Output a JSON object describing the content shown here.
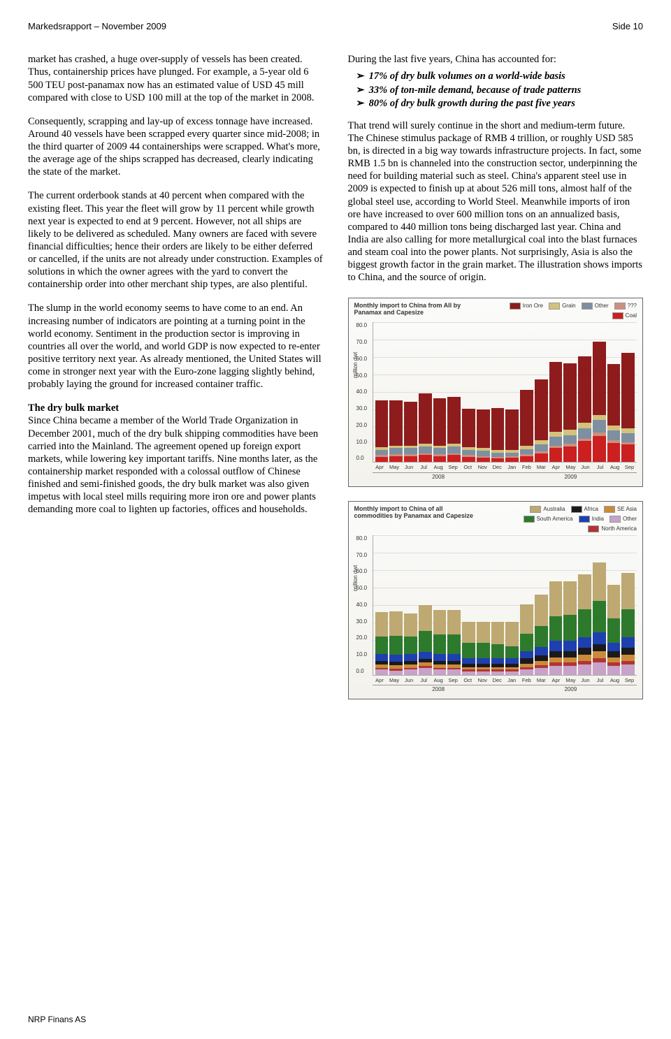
{
  "header": {
    "left": "Markedsrapport – November 2009",
    "right": "Side 10"
  },
  "footer": "NRP Finans AS",
  "left_col": {
    "p1": "market has crashed, a huge over-supply of vessels has been created. Thus, containership prices have plunged. For example, a 5-year old 6 500 TEU post-panamax now has an estimated value of USD 45 mill compared with close to USD 100 mill at the top of the market in 2008.",
    "p2": "Consequently, scrapping and lay-up of excess tonnage have increased. Around 40 vessels have been scrapped every quarter since mid-2008; in the third quarter of 2009 44 containerships were scrapped. What's more, the average age of the ships scrapped has decreased, clearly indicating the state of the market.",
    "p3": "The current orderbook stands at 40 percent when compared with the existing fleet. This year the fleet will grow by 11 percent while growth next year is expected to end at 9 percent. However, not all ships are likely to be delivered as scheduled. Many owners are faced with severe financial difficulties; hence their orders are likely to be either deferred or cancelled, if the units are not already under construction. Examples of solutions in which the owner agrees with the yard to convert the containership order into other merchant ship types, are also plentiful.",
    "p4": "The slump in the world economy seems to have come to an end. An increasing number of indicators are pointing at a turning point in the world economy. Sentiment in the production sector is improving in countries all over the world, and world GDP is now expected to re-enter positive territory next year. As already mentioned, the United States will come in stronger next year with the Euro-zone lagging slightly behind, probably laying the ground for increased container traffic.",
    "sec_head": "The dry bulk market",
    "p5": "Since China became a member of the World Trade Organization in December 2001, much of the dry bulk shipping commodities have been carried into the Mainland. The agreement opened up foreign export markets, while lowering key important tariffs. Nine months later, as the containership market responded with a colossal outflow of Chinese finished and semi-finished goods, the dry bulk market was also given impetus with local steel mills requiring more iron ore and power plants demanding more coal to lighten up factories, offices and households."
  },
  "right_col": {
    "p1": "During the last five years, China has accounted for:",
    "bullets": [
      "17% of dry bulk volumes on a world-wide basis",
      "33% of ton-mile demand, because of trade patterns",
      "80% of dry bulk growth during the past five years"
    ],
    "p2": "That trend will surely continue in the short and medium-term future. The Chinese stimulus package of RMB 4 trillion, or roughly USD 585 bn, is directed in a big way towards infrastructure projects. In fact, some RMB 1.5 bn is channeled into the construction sector, underpinning the need for building material such as steel. China's apparent steel use in 2009 is expected to finish up at about 526 mill tons, almost half of the global steel use, according to World Steel. Meanwhile imports of iron ore have increased to over 600 million tons on an annualized basis, compared to 440 million tons being discharged last year. China and India are also calling for more metallurgical coal into the blast furnaces and steam coal into the power plants. Not surprisingly, Asia is also the biggest growth factor in the grain market. The illustration shows imports to China, and the source of origin."
  },
  "chart1": {
    "title": "Monthly import to China from All by Panamax and Capesize",
    "ylabel": "million dwt",
    "ymax": 80,
    "ytick_step": 10,
    "legend": [
      {
        "label": "Iron Ore",
        "color": "#8e1c1c"
      },
      {
        "label": "Grain",
        "color": "#d3c27a"
      },
      {
        "label": "Other",
        "color": "#7d8fa0"
      },
      {
        "label": "???",
        "color": "#cc8f7f"
      },
      {
        "label": "Coal",
        "color": "#cb2020"
      }
    ],
    "months": [
      "Apr",
      "May",
      "Jun",
      "Jul",
      "Aug",
      "Sep",
      "Oct",
      "Nov",
      "Dec",
      "Jan",
      "Feb",
      "Mar",
      "Apr",
      "May",
      "Jun",
      "Jul",
      "Aug",
      "Sep"
    ],
    "year_segments": [
      {
        "label": "2008",
        "span": 9
      },
      {
        "label": "2009",
        "span": 9
      }
    ],
    "series_order": [
      "iron",
      "grain",
      "other",
      "unk",
      "coal"
    ],
    "colors": {
      "iron": "#8e1c1c",
      "grain": "#d3c27a",
      "other": "#7d8fa0",
      "unk": "#cc8f7f",
      "coal": "#cb2020"
    },
    "data": [
      {
        "iron": 27,
        "grain": 1.5,
        "other": 3,
        "unk": 1,
        "coal": 3
      },
      {
        "iron": 26,
        "grain": 1.5,
        "other": 3.5,
        "unk": 1,
        "coal": 3.5
      },
      {
        "iron": 25,
        "grain": 1.5,
        "other": 3.5,
        "unk": 1,
        "coal": 3.5
      },
      {
        "iron": 29,
        "grain": 1.5,
        "other": 4,
        "unk": 1,
        "coal": 4
      },
      {
        "iron": 27,
        "grain": 1.5,
        "other": 3.5,
        "unk": 1,
        "coal": 3.5
      },
      {
        "iron": 27,
        "grain": 1.5,
        "other": 4,
        "unk": 1,
        "coal": 4
      },
      {
        "iron": 22,
        "grain": 1.5,
        "other": 3,
        "unk": 1,
        "coal": 3
      },
      {
        "iron": 22,
        "grain": 1.5,
        "other": 3,
        "unk": 1,
        "coal": 2.5
      },
      {
        "iron": 24,
        "grain": 1.5,
        "other": 2.5,
        "unk": 1,
        "coal": 2
      },
      {
        "iron": 23,
        "grain": 1.5,
        "other": 2,
        "unk": 1,
        "coal": 2.5
      },
      {
        "iron": 32,
        "grain": 2,
        "other": 3,
        "unk": 1,
        "coal": 3.5
      },
      {
        "iron": 35,
        "grain": 2.5,
        "other": 4,
        "unk": 1,
        "coal": 5
      },
      {
        "iron": 40,
        "grain": 3,
        "other": 5,
        "unk": 1.5,
        "coal": 8
      },
      {
        "iron": 38,
        "grain": 3,
        "other": 5,
        "unk": 1.5,
        "coal": 9
      },
      {
        "iron": 38,
        "grain": 3,
        "other": 6,
        "unk": 1.5,
        "coal": 12
      },
      {
        "iron": 42,
        "grain": 3,
        "other": 7,
        "unk": 2,
        "coal": 15
      },
      {
        "iron": 35,
        "grain": 3,
        "other": 5.5,
        "unk": 1.5,
        "coal": 11
      },
      {
        "iron": 43,
        "grain": 3,
        "other": 5,
        "unk": 1.5,
        "coal": 10
      }
    ]
  },
  "chart2": {
    "title": "Monthly import to China of all commodities by Panamax and Capesize",
    "ylabel": "million dwt",
    "ymax": 80,
    "ytick_step": 10,
    "legend": [
      {
        "label": "Australia",
        "color": "#bda971"
      },
      {
        "label": "Africa",
        "color": "#1a1a1a"
      },
      {
        "label": "SE Asia",
        "color": "#c98b3a"
      },
      {
        "label": "South America",
        "color": "#2d7a2d"
      },
      {
        "label": "India",
        "color": "#1e3fb0"
      },
      {
        "label": "Other",
        "color": "#c7a2c9"
      },
      {
        "label": "North America",
        "color": "#b33434"
      }
    ],
    "months": [
      "Apr",
      "May",
      "Jun",
      "Jul",
      "Aug",
      "Sep",
      "Oct",
      "Nov",
      "Dec",
      "Jan",
      "Feb",
      "Mar",
      "Apr",
      "May",
      "Jun",
      "Jul",
      "Aug",
      "Sep"
    ],
    "year_segments": [
      {
        "label": "2008",
        "span": 9
      },
      {
        "label": "2009",
        "span": 9
      }
    ],
    "series_order": [
      "aus",
      "sam",
      "ind",
      "afr",
      "sea",
      "nam",
      "oth"
    ],
    "colors": {
      "aus": "#bda971",
      "sam": "#2d7a2d",
      "ind": "#1e3fb0",
      "afr": "#1a1a1a",
      "sea": "#c98b3a",
      "nam": "#b33434",
      "oth": "#c7a2c9"
    },
    "data": [
      {
        "aus": 14,
        "sam": 10,
        "ind": 4,
        "afr": 2,
        "sea": 2,
        "nam": 1,
        "oth": 3
      },
      {
        "aus": 14,
        "sam": 11,
        "ind": 4,
        "afr": 2,
        "sea": 2,
        "nam": 1,
        "oth": 2.5
      },
      {
        "aus": 13,
        "sam": 10,
        "ind": 4,
        "afr": 2,
        "sea": 2,
        "nam": 1,
        "oth": 3
      },
      {
        "aus": 15,
        "sam": 12,
        "ind": 4,
        "afr": 2,
        "sea": 2,
        "nam": 1,
        "oth": 4
      },
      {
        "aus": 14,
        "sam": 11,
        "ind": 4,
        "afr": 2,
        "sea": 2,
        "nam": 1,
        "oth": 3
      },
      {
        "aus": 14,
        "sam": 11,
        "ind": 4,
        "afr": 2,
        "sea": 2,
        "nam": 1,
        "oth": 3
      },
      {
        "aus": 12,
        "sam": 9,
        "ind": 3,
        "afr": 2,
        "sea": 1.5,
        "nam": 1,
        "oth": 2
      },
      {
        "aus": 12,
        "sam": 9,
        "ind": 3,
        "afr": 2,
        "sea": 1.5,
        "nam": 1,
        "oth": 2
      },
      {
        "aus": 13,
        "sam": 8,
        "ind": 3,
        "afr": 2,
        "sea": 1.5,
        "nam": 1,
        "oth": 2
      },
      {
        "aus": 14,
        "sam": 7,
        "ind": 3,
        "afr": 2,
        "sea": 1.5,
        "nam": 1,
        "oth": 2
      },
      {
        "aus": 17,
        "sam": 10,
        "ind": 4,
        "afr": 3,
        "sea": 2,
        "nam": 1.5,
        "oth": 3
      },
      {
        "aus": 18,
        "sam": 12,
        "ind": 5,
        "afr": 3,
        "sea": 2.5,
        "nam": 1.5,
        "oth": 4
      },
      {
        "aus": 20,
        "sam": 14,
        "ind": 6,
        "afr": 3.5,
        "sea": 3,
        "nam": 2,
        "oth": 5
      },
      {
        "aus": 19,
        "sam": 15,
        "ind": 6,
        "afr": 3.5,
        "sea": 3,
        "nam": 2,
        "oth": 5
      },
      {
        "aus": 20,
        "sam": 16,
        "ind": 6,
        "afr": 4,
        "sea": 3.5,
        "nam": 2,
        "oth": 6
      },
      {
        "aus": 22,
        "sam": 18,
        "ind": 7,
        "afr": 4,
        "sea": 4,
        "nam": 2.5,
        "oth": 7
      },
      {
        "aus": 19,
        "sam": 14,
        "ind": 5,
        "afr": 3.5,
        "sea": 3,
        "nam": 2,
        "oth": 5
      },
      {
        "aus": 21,
        "sam": 16,
        "ind": 6,
        "afr": 4,
        "sea": 3.5,
        "nam": 2,
        "oth": 6
      }
    ]
  }
}
